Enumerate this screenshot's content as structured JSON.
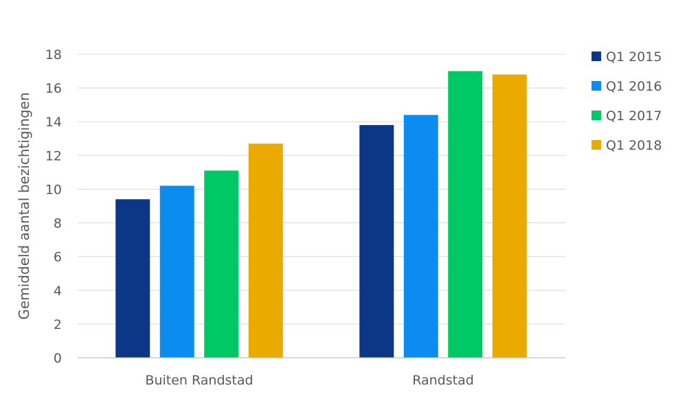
{
  "chart_data": {
    "type": "bar",
    "categories": [
      "Buiten Randstad",
      "Randstad"
    ],
    "series": [
      {
        "name": "Q1 2015",
        "color": "#0c3787",
        "values": [
          9.4,
          13.8
        ]
      },
      {
        "name": "Q1 2016",
        "color": "#0a8cf0",
        "values": [
          10.2,
          14.4
        ]
      },
      {
        "name": "Q1 2017",
        "color": "#00c864",
        "values": [
          11.1,
          17.0
        ]
      },
      {
        "name": "Q1 2018",
        "color": "#ebaa00",
        "values": [
          12.7,
          16.8
        ]
      }
    ],
    "ylabel": "Gemiddeld aantal bezichtigingen",
    "xlabel": "",
    "ylim": [
      0,
      18
    ],
    "yticks": [
      0,
      2,
      4,
      6,
      8,
      10,
      12,
      14,
      16,
      18
    ],
    "grid": true,
    "legend_position": "right"
  }
}
